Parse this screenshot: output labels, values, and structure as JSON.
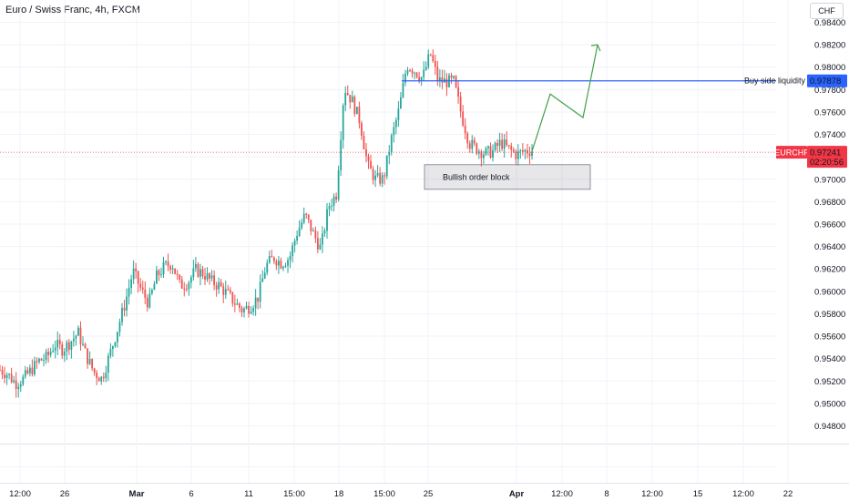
{
  "header": {
    "title": "Euro / Swiss Franc, 4h, FXCM",
    "currency": "CHF"
  },
  "colors": {
    "up": "#26a69a",
    "down": "#ef5350",
    "liquidity_line": "#2962ff",
    "projection": "#43a047",
    "price_tag": "#f23645"
  },
  "chart_data": {
    "type": "candlestick",
    "symbol": "EURCHF",
    "timeframe": "4h",
    "y_ticks": [
      "0.98400",
      "0.98200",
      "0.98000",
      "0.97800",
      "0.97600",
      "0.97400",
      "0.97200",
      "0.97000",
      "0.96800",
      "0.96600",
      "0.96400",
      "0.96200",
      "0.96000",
      "0.95800",
      "0.95600",
      "0.95400",
      "0.95200",
      "0.95000",
      "0.94800"
    ],
    "ylim": [
      0.9466,
      0.9856
    ],
    "x_ticks": [
      {
        "label": "12:00",
        "major": false
      },
      {
        "label": "26",
        "major": false
      },
      {
        "label": "Mar",
        "major": true
      },
      {
        "label": "6",
        "major": false
      },
      {
        "label": "11",
        "major": false
      },
      {
        "label": "15:00",
        "major": false
      },
      {
        "label": "18",
        "major": false
      },
      {
        "label": "15:00",
        "major": false
      },
      {
        "label": "25",
        "major": false
      },
      {
        "label": "Apr",
        "major": true
      },
      {
        "label": "12:00",
        "major": false
      },
      {
        "label": "8",
        "major": false
      },
      {
        "label": "12:00",
        "major": false
      },
      {
        "label": "15",
        "major": false
      },
      {
        "label": "12:00",
        "major": false
      },
      {
        "label": "22",
        "major": false
      }
    ],
    "price_path": [
      0.953,
      0.9526,
      0.9518,
      0.9522,
      0.953,
      0.9538,
      0.9541,
      0.9553,
      0.9548,
      0.9555,
      0.9563,
      0.9543,
      0.9528,
      0.9522,
      0.9543,
      0.9566,
      0.959,
      0.9618,
      0.9602,
      0.9589,
      0.9613,
      0.9622,
      0.9625,
      0.9605,
      0.9608,
      0.9619,
      0.9616,
      0.9609,
      0.9605,
      0.9598,
      0.959,
      0.9583,
      0.9587,
      0.9595,
      0.9623,
      0.963,
      0.9625,
      0.963,
      0.9653,
      0.9668,
      0.9652,
      0.9638,
      0.9676,
      0.9687,
      0.9782,
      0.977,
      0.9752,
      0.9712,
      0.97,
      0.97,
      0.9735,
      0.9762,
      0.9802,
      0.9797,
      0.979,
      0.9812,
      0.9788,
      0.9787,
      0.9787,
      0.9757,
      0.9732,
      0.9727,
      0.9723,
      0.9725,
      0.9733,
      0.9727,
      0.9722,
      0.9725,
      0.9726
    ],
    "current_price": "0.97241",
    "countdown": "02:20:56",
    "symbol_label": "EURCHF",
    "buy_side_liquidity": {
      "price": 0.97878,
      "label": "Buy side liquidity",
      "price_label": "0.97878"
    },
    "order_block": {
      "top": 0.9713,
      "bottom": 0.9691,
      "label": "Bullish order block"
    },
    "projection_path": [
      0.9725,
      0.9776,
      0.9755,
      0.982
    ]
  }
}
